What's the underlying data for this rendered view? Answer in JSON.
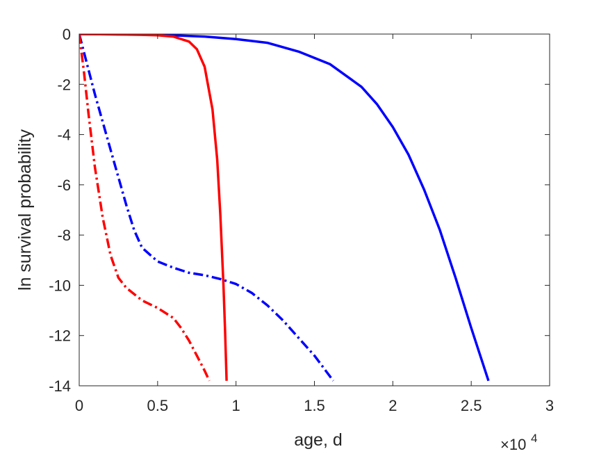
{
  "chart_data": {
    "type": "line",
    "title": "",
    "xlabel": "age, d",
    "ylabel": "ln survival probability",
    "x_exponent_label": "×10",
    "x_exponent_power": "4",
    "xlim": [
      0,
      30000
    ],
    "ylim": [
      -14,
      0
    ],
    "xticks": [
      0,
      5000,
      10000,
      15000,
      20000,
      25000,
      30000
    ],
    "xtick_labels": [
      "0",
      "0.5",
      "1",
      "1.5",
      "2",
      "2.5",
      "3"
    ],
    "yticks": [
      0,
      -2,
      -4,
      -6,
      -8,
      -10,
      -12,
      -14
    ],
    "ytick_labels": [
      "0",
      "-2",
      "-4",
      "-6",
      "-8",
      "-10",
      "-12",
      "-14"
    ],
    "grid": false,
    "series": [
      {
        "color": "#0000ff",
        "style": "solid",
        "x": [
          0,
          2000,
          4000,
          6000,
          8000,
          10000,
          12000,
          14000,
          16000,
          18000,
          19000,
          20000,
          21000,
          22000,
          23000,
          24000,
          25000,
          26100
        ],
        "y": [
          0,
          -0.01,
          -0.02,
          -0.05,
          -0.1,
          -0.2,
          -0.35,
          -0.7,
          -1.2,
          -2.1,
          -2.8,
          -3.7,
          -4.8,
          -6.2,
          -7.8,
          -9.7,
          -11.7,
          -13.8
        ]
      },
      {
        "color": "#ff0000",
        "style": "solid",
        "x": [
          0,
          2000,
          4000,
          5000,
          6000,
          7000,
          7500,
          8000,
          8500,
          8800,
          9000,
          9200,
          9300,
          9400
        ],
        "y": [
          0,
          -0.01,
          -0.03,
          -0.05,
          -0.1,
          -0.3,
          -0.6,
          -1.3,
          -3.0,
          -5.0,
          -7.2,
          -10.0,
          -11.8,
          -13.8
        ]
      },
      {
        "color": "#0000ff",
        "style": "dashdot",
        "x": [
          0,
          1000,
          2000,
          3000,
          3500,
          4000,
          5000,
          6000,
          7000,
          8000,
          9000,
          10000,
          11000,
          12000,
          13000,
          14000,
          15000,
          16200
        ],
        "y": [
          0,
          -2.4,
          -4.6,
          -6.8,
          -7.8,
          -8.5,
          -9.05,
          -9.3,
          -9.5,
          -9.6,
          -9.75,
          -9.95,
          -10.3,
          -10.8,
          -11.4,
          -12.1,
          -12.8,
          -13.8
        ]
      },
      {
        "color": "#ff0000",
        "style": "dashdot",
        "x": [
          0,
          300,
          600,
          1000,
          1500,
          2000,
          2500,
          3000,
          4000,
          5000,
          6000,
          6500,
          7000,
          7500,
          8000,
          8300
        ],
        "y": [
          0,
          -1.5,
          -3.2,
          -5.3,
          -7.3,
          -8.8,
          -9.7,
          -10.1,
          -10.6,
          -10.9,
          -11.3,
          -11.7,
          -12.2,
          -12.8,
          -13.4,
          -13.8
        ]
      }
    ]
  }
}
